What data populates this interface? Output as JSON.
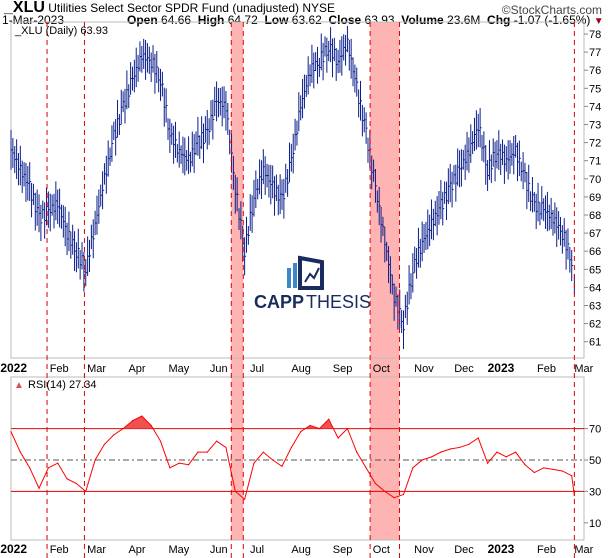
{
  "header": {
    "symbol": "_XLU",
    "name": "Utilities Select Sector SPDR Fund (unadjusted) NYSE",
    "watermark": "©StockCharts.com",
    "date": "1-Mar-2023",
    "open_label": "Open",
    "open": "64.66",
    "high_label": "High",
    "high": "64.72",
    "low_label": "Low",
    "low": "63.62",
    "close_label": "Close",
    "close": "63.93",
    "volume_label": "Volume",
    "volume": "23.6M",
    "chg_label": "Chg",
    "chg": "-1.07 (-1.65%)",
    "chg_direction": "down"
  },
  "logo": {
    "text_bold": "CAPP",
    "text_light": "THESIS"
  },
  "colors": {
    "price": "#0a1e8c",
    "rsi": "#ff0000",
    "shade": "#ffb4b4",
    "dashed": "#e00000",
    "logo_dark": "#1a2b5e",
    "logo_light": "#3f86c9"
  },
  "chart_data": [
    {
      "type": "line",
      "title": "_XLU (Daily) 63.93",
      "render": "price bars (weekly approximation)",
      "ylim": [
        60,
        78.5
      ],
      "y_ticks": [
        61,
        62,
        63,
        64,
        65,
        66,
        67,
        68,
        69,
        70,
        71,
        72,
        73,
        74,
        75,
        76,
        77,
        78
      ],
      "x_tick_labels": [
        {
          "date": "2022-01-01",
          "label": "2022",
          "bold": true
        },
        {
          "date": "2022-02-01",
          "label": "Feb"
        },
        {
          "date": "2022-03-01",
          "label": "Mar"
        },
        {
          "date": "2022-04-01",
          "label": "Apr"
        },
        {
          "date": "2022-05-01",
          "label": "May"
        },
        {
          "date": "2022-06-01",
          "label": "Jun"
        },
        {
          "date": "2022-07-01",
          "label": "Jul"
        },
        {
          "date": "2022-08-01",
          "label": "Aug"
        },
        {
          "date": "2022-09-01",
          "label": "Sep"
        },
        {
          "date": "2022-10-01",
          "label": "Oct"
        },
        {
          "date": "2022-11-01",
          "label": "Nov"
        },
        {
          "date": "2022-12-01",
          "label": "Dec"
        },
        {
          "date": "2023-01-01",
          "label": "2023",
          "bold": true
        },
        {
          "date": "2023-02-01",
          "label": "Feb"
        },
        {
          "date": "2023-03-01",
          "label": "Mar"
        }
      ],
      "dates": [
        "2022-01-03",
        "2022-01-10",
        "2022-01-17",
        "2022-01-24",
        "2022-01-31",
        "2022-02-07",
        "2022-02-14",
        "2022-02-21",
        "2022-02-28",
        "2022-03-07",
        "2022-03-14",
        "2022-03-21",
        "2022-03-28",
        "2022-04-04",
        "2022-04-11",
        "2022-04-18",
        "2022-04-25",
        "2022-05-02",
        "2022-05-09",
        "2022-05-16",
        "2022-05-23",
        "2022-05-30",
        "2022-06-06",
        "2022-06-13",
        "2022-06-20",
        "2022-06-27",
        "2022-07-04",
        "2022-07-11",
        "2022-07-18",
        "2022-07-25",
        "2022-08-01",
        "2022-08-08",
        "2022-08-15",
        "2022-08-22",
        "2022-08-29",
        "2022-09-05",
        "2022-09-12",
        "2022-09-19",
        "2022-09-26",
        "2022-10-03",
        "2022-10-10",
        "2022-10-17",
        "2022-10-24",
        "2022-10-31",
        "2022-11-07",
        "2022-11-14",
        "2022-11-21",
        "2022-11-28",
        "2022-12-05",
        "2022-12-12",
        "2022-12-19",
        "2022-12-26",
        "2023-01-02",
        "2023-01-09",
        "2023-01-16",
        "2023-01-23",
        "2023-01-30",
        "2023-02-06",
        "2023-02-13",
        "2023-02-20",
        "2023-02-27",
        "2023-03-01"
      ],
      "close": [
        71.6,
        70.5,
        69.5,
        67.8,
        68.2,
        68.6,
        67.0,
        66.0,
        65.0,
        67.5,
        70.0,
        72.3,
        74.0,
        75.5,
        76.8,
        76.5,
        75.5,
        72.5,
        71.5,
        71.0,
        72.0,
        72.5,
        74.3,
        74.0,
        69.5,
        66.0,
        69.0,
        70.5,
        69.5,
        68.8,
        71.0,
        74.0,
        76.0,
        76.5,
        77.3,
        76.5,
        77.5,
        75.0,
        72.5,
        69.5,
        66.5,
        63.5,
        62.0,
        65.0,
        66.5,
        67.5,
        68.5,
        69.5,
        70.5,
        71.5,
        73.0,
        70.5,
        71.5,
        71.0,
        71.5,
        70.0,
        68.5,
        68.3,
        67.8,
        67.0,
        65.5,
        63.93
      ]
    },
    {
      "type": "line",
      "title": "RSI(14) 27.34",
      "ylim": [
        0,
        85
      ],
      "y_ticks": [
        10,
        30,
        50,
        70
      ],
      "reference_lines": [
        30,
        50,
        70
      ],
      "fill_above": 70,
      "values": [
        68,
        55,
        45,
        32,
        45,
        48,
        38,
        35,
        30,
        50,
        60,
        66,
        70,
        75,
        78,
        72,
        62,
        45,
        48,
        47,
        55,
        55,
        62,
        58,
        30,
        25,
        48,
        55,
        50,
        46,
        58,
        68,
        72,
        70,
        76,
        64,
        70,
        55,
        45,
        35,
        30,
        26,
        28,
        45,
        50,
        52,
        55,
        57,
        58,
        60,
        64,
        48,
        55,
        52,
        55,
        47,
        42,
        45,
        44,
        43,
        40,
        27.34
      ]
    }
  ],
  "annotations": {
    "shaded_ranges": [
      [
        "2022-06-17",
        "2022-06-26"
      ],
      [
        "2022-09-29",
        "2022-10-21"
      ]
    ],
    "dashed_lines": [
      "2022-01-30",
      "2022-02-27",
      "2022-06-17",
      "2022-06-26",
      "2022-09-29",
      "2022-10-21",
      "2023-03-01"
    ]
  }
}
